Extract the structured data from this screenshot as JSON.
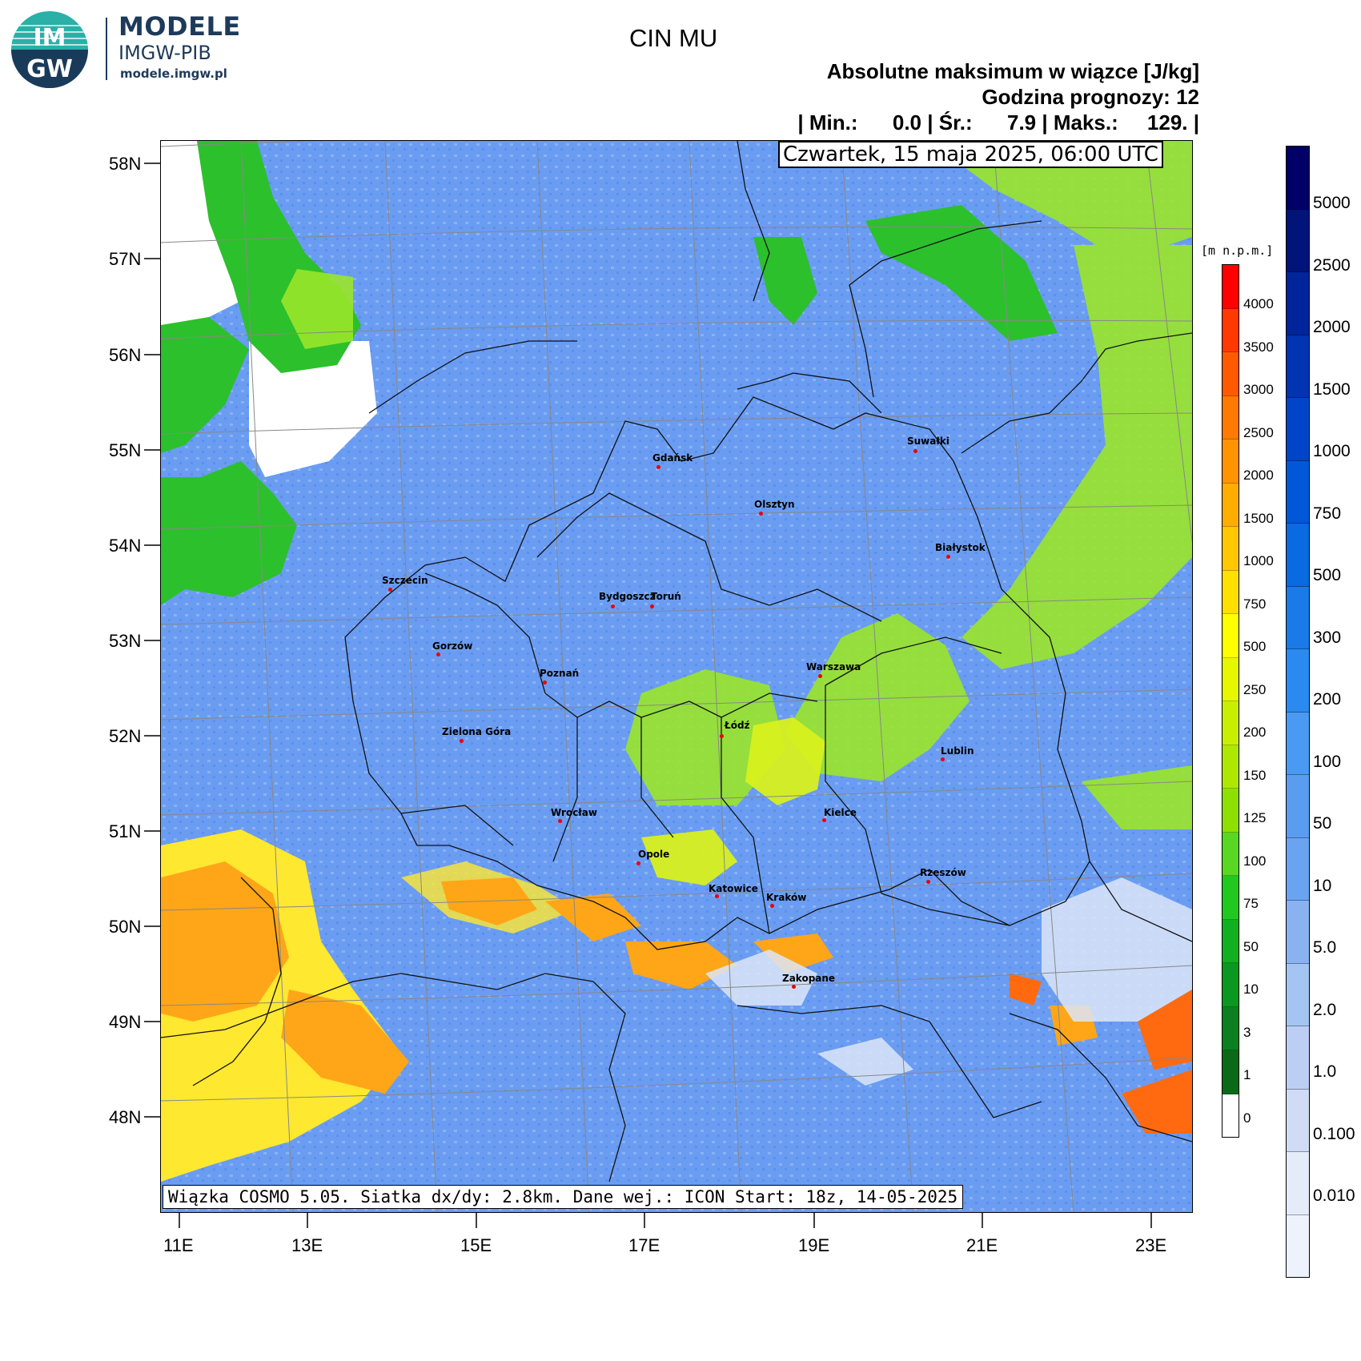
{
  "logo": {
    "badge_top": "IM",
    "badge_bottom": "GW",
    "name": "MODELE",
    "org": "IMGW-PIB",
    "url": "modele.imgw.pl"
  },
  "title": "CIN MU",
  "header": {
    "line1": "Absolutne maksimum w wiązce [J/kg]",
    "line2": "Godzina prognozy: 12",
    "line3": "| Min.:      0.0 | Śr.:      7.9 | Maks.:     129. |"
  },
  "date_label": "Czwartek, 15 maja 2025, 06:00 UTC",
  "footer": "Wiązka COSMO 5.05. Siatka dx/dy: 2.8km. Dane wej.: ICON Start: 18z, 14-05-2025",
  "lat_labels": [
    "58N",
    "57N",
    "56N",
    "55N",
    "54N",
    "53N",
    "52N",
    "51N",
    "50N",
    "49N",
    "48N"
  ],
  "lon_labels": [
    "11E",
    "13E",
    "15E",
    "17E",
    "19E",
    "21E",
    "23E"
  ],
  "cities": [
    {
      "name": "Gdańsk"
    },
    {
      "name": "Suwałki"
    },
    {
      "name": "Olsztyn"
    },
    {
      "name": "Białystok"
    },
    {
      "name": "Szczecin"
    },
    {
      "name": "Bydgoszcz"
    },
    {
      "name": "Toruń"
    },
    {
      "name": "Gorzów"
    },
    {
      "name": "Poznań"
    },
    {
      "name": "Warszawa"
    },
    {
      "name": "Zielona Góra"
    },
    {
      "name": "Łódź"
    },
    {
      "name": "Lublin"
    },
    {
      "name": "Wrocław"
    },
    {
      "name": "Kielce"
    },
    {
      "name": "Opole"
    },
    {
      "name": "Rzeszów"
    },
    {
      "name": "Katowice"
    },
    {
      "name": "Kraków"
    },
    {
      "name": "Zakopane"
    }
  ],
  "terrain_scale": {
    "unit": "[m n.p.m.]",
    "labels": [
      "4000",
      "3500",
      "3000",
      "2500",
      "2000",
      "1500",
      "1000",
      "750",
      "500",
      "250",
      "200",
      "150",
      "125",
      "100",
      "75",
      "50",
      "10",
      "3",
      "1",
      "0"
    ],
    "colors": [
      "#ff0000",
      "#ff3a00",
      "#ff5a00",
      "#ff7a00",
      "#ff9400",
      "#ffae00",
      "#ffc800",
      "#ffe000",
      "#ffff00",
      "#e6f700",
      "#c8ef00",
      "#aee800",
      "#8ee000",
      "#58d820",
      "#20c820",
      "#10b020",
      "#0a9820",
      "#0a8020",
      "#0a6a18",
      "#ffffff"
    ]
  },
  "cin_scale": {
    "labels": [
      "5000",
      "2500",
      "2000",
      "1500",
      "1000",
      "750",
      "500",
      "300",
      "200",
      "100",
      "50",
      "10",
      "5.0",
      "2.0",
      "1.0",
      "0.100",
      "0.010"
    ],
    "colors": [
      "#000066",
      "#00147a",
      "#00249a",
      "#0034b0",
      "#0044c8",
      "#0058d8",
      "#0a6ae0",
      "#1a7ae8",
      "#2a8af0",
      "#4a9af4",
      "#5a9cf0",
      "#6aa4f0",
      "#8ab2f0",
      "#a4c4f2",
      "#bccef4",
      "#d0dcf6",
      "#e4ebf9",
      "#eef2fc"
    ]
  },
  "colors": {
    "sea_white": "#ffffff",
    "base_blue": "#6a9cf2",
    "green": "#2cc02c",
    "lime": "#9ae62a",
    "yellow_green": "#d2f01e",
    "yellow": "#ffe830",
    "orange": "#ffa618",
    "red_orange": "#ff6a10",
    "pale": "#dce6f8"
  }
}
